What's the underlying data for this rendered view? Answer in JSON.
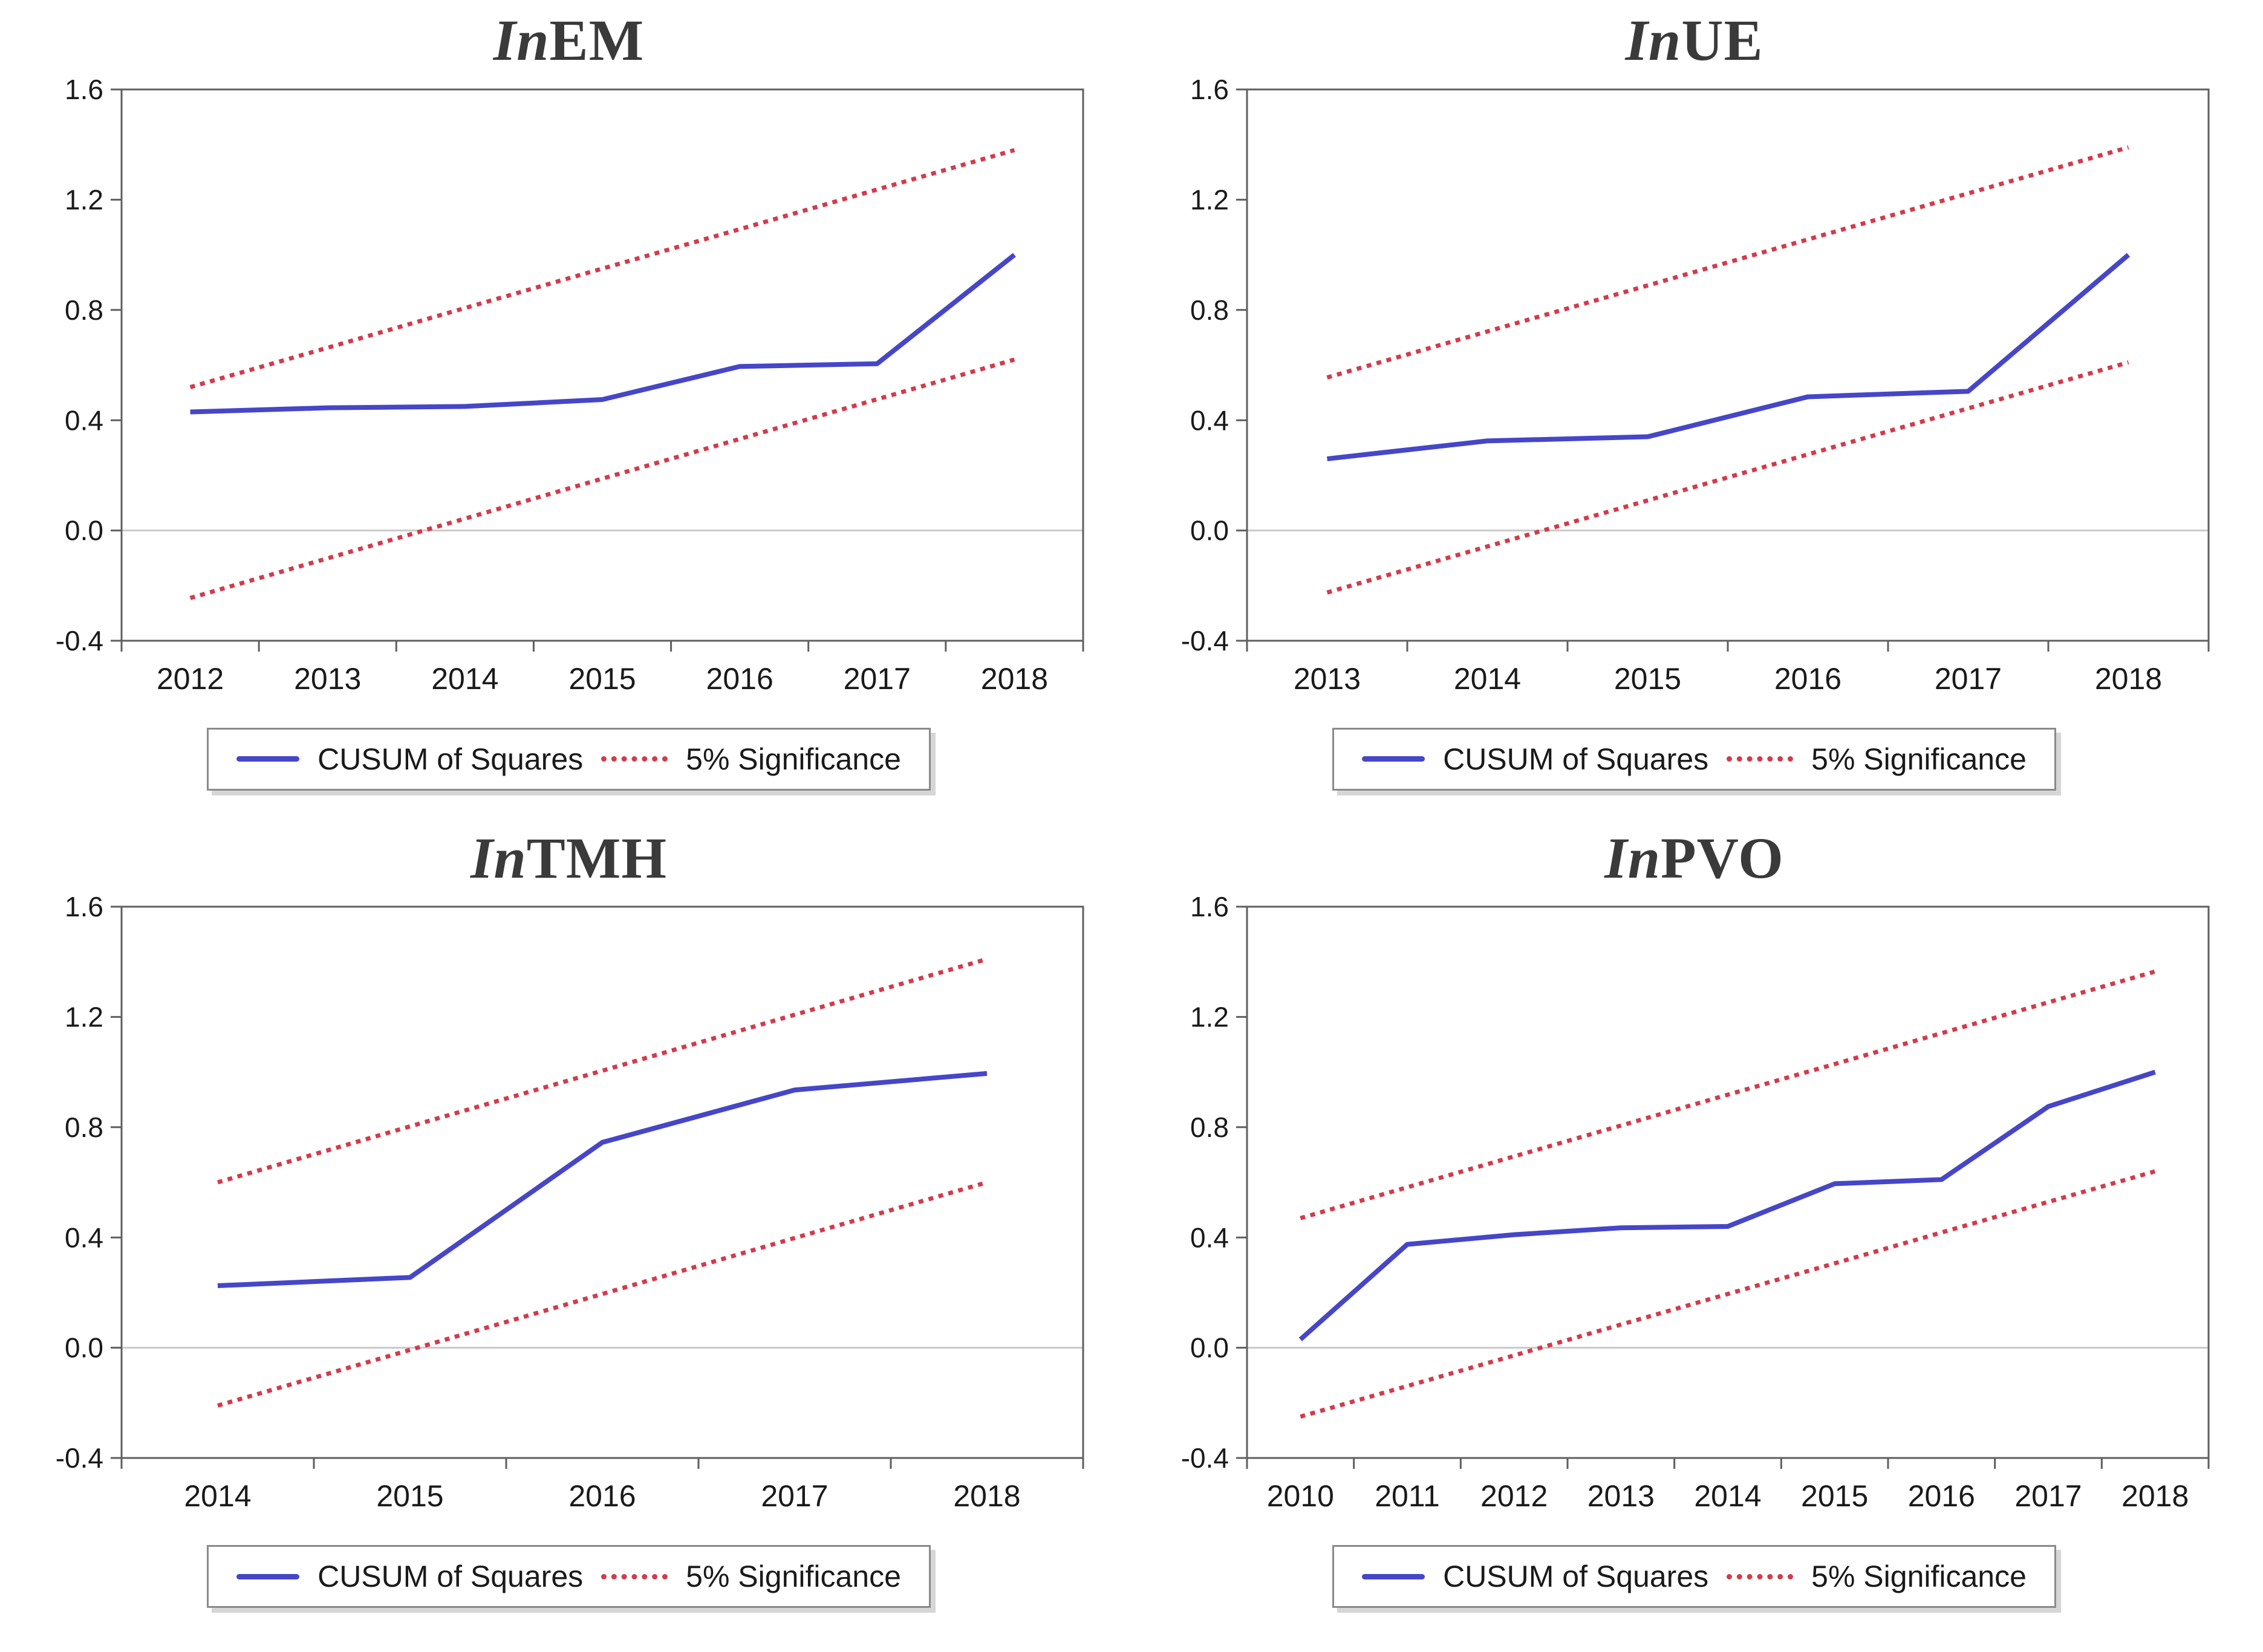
{
  "page": {
    "background": "#ffffff"
  },
  "colors": {
    "cusum_line": "#4646c8",
    "significance_line": "#d23b4b",
    "frame": "#5f5f5f",
    "zero_line": "#c9c9c9",
    "tick_text": "#1a1a1a",
    "title_text": "#3a3a3a",
    "legend_border": "#8a8a8a"
  },
  "legend": {
    "cusum_label": "CUSUM of Squares",
    "significance_label": "5% Significance"
  },
  "chart_data": [
    {
      "type": "line",
      "title": "InEM",
      "title_prefix": "In",
      "title_main": "EM",
      "xlabel": "",
      "ylabel": "",
      "x": [
        2012,
        2013,
        2014,
        2015,
        2016,
        2017,
        2018
      ],
      "series": [
        {
          "name": "CUSUM of Squares",
          "style": "solid",
          "color_key": "cusum_line",
          "values": [
            0.43,
            0.445,
            0.45,
            0.475,
            0.595,
            0.605,
            1.0
          ]
        },
        {
          "name": "5% Significance (upper)",
          "style": "dotted",
          "color_key": "significance_line",
          "values": [
            0.52,
            0.663,
            0.807,
            0.95,
            1.093,
            1.237,
            1.38
          ]
        },
        {
          "name": "5% Significance (lower)",
          "style": "dotted",
          "color_key": "significance_line",
          "values": [
            -0.245,
            -0.101,
            0.043,
            0.188,
            0.332,
            0.476,
            0.62
          ]
        }
      ],
      "ylim": [
        -0.4,
        1.6
      ],
      "yticks": [
        -0.4,
        0.0,
        0.4,
        0.8,
        1.2,
        1.6
      ],
      "grid": "zero-line-only",
      "legend_position": "bottom"
    },
    {
      "type": "line",
      "title": "InUE",
      "title_prefix": "In",
      "title_main": "UE",
      "xlabel": "",
      "ylabel": "",
      "x": [
        2013,
        2014,
        2015,
        2016,
        2017,
        2018
      ],
      "series": [
        {
          "name": "CUSUM of Squares",
          "style": "solid",
          "color_key": "cusum_line",
          "values": [
            0.26,
            0.325,
            0.34,
            0.485,
            0.505,
            1.0
          ]
        },
        {
          "name": "5% Significance (upper)",
          "style": "dotted",
          "color_key": "significance_line",
          "values": [
            0.555,
            0.722,
            0.889,
            1.056,
            1.223,
            1.39
          ]
        },
        {
          "name": "5% Significance (lower)",
          "style": "dotted",
          "color_key": "significance_line",
          "values": [
            -0.225,
            -0.058,
            0.109,
            0.276,
            0.443,
            0.61
          ]
        }
      ],
      "ylim": [
        -0.4,
        1.6
      ],
      "yticks": [
        -0.4,
        0.0,
        0.4,
        0.8,
        1.2,
        1.6
      ],
      "grid": "zero-line-only",
      "legend_position": "bottom"
    },
    {
      "type": "line",
      "title": "InTMH",
      "title_prefix": "In",
      "title_main": "TMH",
      "xlabel": "",
      "ylabel": "",
      "x": [
        2014,
        2015,
        2016,
        2017,
        2018
      ],
      "series": [
        {
          "name": "CUSUM of Squares",
          "style": "solid",
          "color_key": "cusum_line",
          "values": [
            0.225,
            0.255,
            0.745,
            0.935,
            0.995
          ]
        },
        {
          "name": "5% Significance (upper)",
          "style": "dotted",
          "color_key": "significance_line",
          "values": [
            0.6,
            0.803,
            1.005,
            1.208,
            1.41
          ]
        },
        {
          "name": "5% Significance (lower)",
          "style": "dotted",
          "color_key": "significance_line",
          "values": [
            -0.21,
            -0.008,
            0.195,
            0.398,
            0.6
          ]
        }
      ],
      "ylim": [
        -0.4,
        1.6
      ],
      "yticks": [
        -0.4,
        0.0,
        0.4,
        0.8,
        1.2,
        1.6
      ],
      "grid": "zero-line-only",
      "legend_position": "bottom"
    },
    {
      "type": "line",
      "title": "InPVO",
      "title_prefix": "In",
      "title_main": "PVO",
      "xlabel": "",
      "ylabel": "",
      "x": [
        2010,
        2011,
        2012,
        2013,
        2014,
        2015,
        2016,
        2017,
        2018
      ],
      "series": [
        {
          "name": "CUSUM of Squares",
          "style": "solid",
          "color_key": "cusum_line",
          "values": [
            0.03,
            0.375,
            0.41,
            0.435,
            0.44,
            0.595,
            0.61,
            0.875,
            1.0
          ]
        },
        {
          "name": "5% Significance (upper)",
          "style": "dotted",
          "color_key": "significance_line",
          "values": [
            0.47,
            0.582,
            0.694,
            0.806,
            0.918,
            1.029,
            1.141,
            1.253,
            1.365
          ]
        },
        {
          "name": "5% Significance (lower)",
          "style": "dotted",
          "color_key": "significance_line",
          "values": [
            -0.25,
            -0.139,
            -0.028,
            0.084,
            0.195,
            0.306,
            0.418,
            0.529,
            0.64
          ]
        }
      ],
      "ylim": [
        -0.4,
        1.6
      ],
      "yticks": [
        -0.4,
        0.0,
        0.4,
        0.8,
        1.2,
        1.6
      ],
      "grid": "zero-line-only",
      "legend_position": "bottom"
    }
  ]
}
